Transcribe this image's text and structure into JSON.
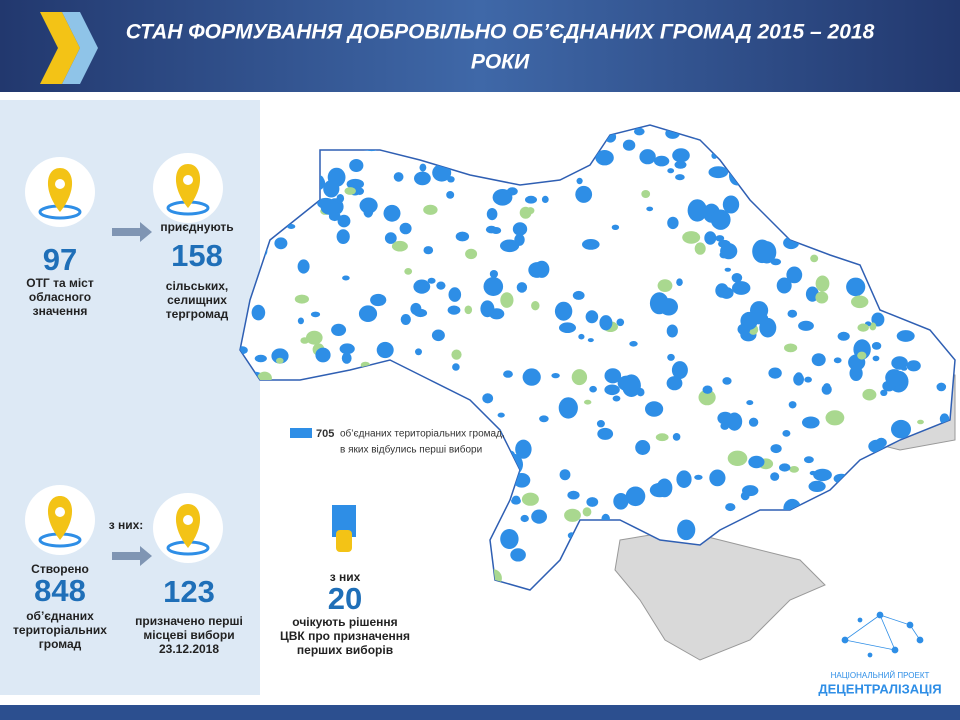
{
  "header": {
    "title_lines": [
      "СТАН ФОРМУВАННЯ ДОБРОВІЛЬНО ОБ’ЄДНАНИХ ГРОМАД 2015 – 2018",
      "РОКИ"
    ]
  },
  "stats": {
    "cities": {
      "number": "97",
      "label_lines": [
        "ОТГ та міст",
        "обласного",
        "значення"
      ]
    },
    "joined": {
      "caption": "приєднують",
      "number": "158",
      "label_lines": [
        "сільських,",
        "селищних",
        "тергромад"
      ]
    },
    "created": {
      "caption": "Створено",
      "number": "848",
      "label_lines": [
        "об’єднаних",
        "територіальних",
        "громад"
      ]
    },
    "of_them": "з них:",
    "elections": {
      "number": "123",
      "label_lines": [
        "призначено перші",
        "місцеві вибори",
        "23.12.2018"
      ]
    },
    "waiting": {
      "caption": "з них",
      "number": "20",
      "label_lines": [
        "очікують рішення",
        "ЦВК про призначення",
        "перших виборів"
      ]
    }
  },
  "map": {
    "legend": {
      "number": "705",
      "label_lines": [
        "об’єднаних територіальних громад,",
        "в яких відбулись перші вибори"
      ]
    }
  },
  "logo": {
    "lines": [
      "НАЦІОНАЛЬНИЙ ПРОЕКТ",
      "ДЕЦЕНТРАЛІЗАЦІЯ"
    ]
  }
}
